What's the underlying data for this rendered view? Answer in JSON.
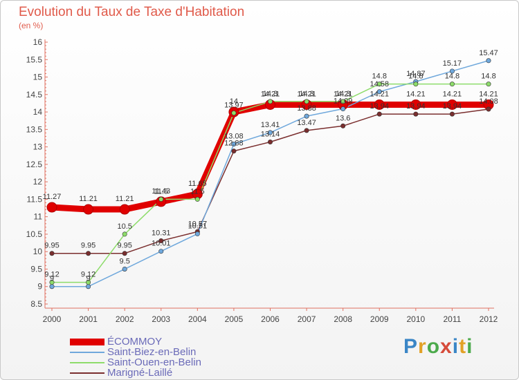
{
  "title": "Evolution du Taux de Taxe d'Habitation",
  "subtitle": "(en %)",
  "logo": "Proxiti",
  "logo_letters": [
    {
      "ch": "P",
      "color": "#3b86c6"
    },
    {
      "ch": "r",
      "color": "#e2a126"
    },
    {
      "ch": "o",
      "color": "#4caa4c"
    },
    {
      "ch": "x",
      "color": "#d64b3a"
    },
    {
      "ch": "i",
      "color": "#3b86c6"
    },
    {
      "ch": "t",
      "color": "#e2a126"
    },
    {
      "ch": "i",
      "color": "#4caa4c"
    }
  ],
  "chart_data": {
    "type": "line",
    "title": "Evolution du Taux de Taxe d'Habitation",
    "ylabel": "(en %)",
    "xlabel": "",
    "x": [
      "2000",
      "2001",
      "2002",
      "2003",
      "2004",
      "2005",
      "2006",
      "2007",
      "2008",
      "2009",
      "2010",
      "2011",
      "2012"
    ],
    "ylim": [
      8.5,
      16
    ],
    "yticks": [
      "8.5",
      "9",
      "9.5",
      "10",
      "10.5",
      "11",
      "11.5",
      "12",
      "12.5",
      "13",
      "13.5",
      "14",
      "14.5",
      "15",
      "15.5",
      "16"
    ],
    "grid": false,
    "legend": "bottom-left",
    "series": [
      {
        "name": "ÉCOMMOY",
        "color": "#e00000",
        "values": [
          11.27,
          11.21,
          11.21,
          11.43,
          11.65,
          14,
          14.21,
          14.21,
          14.21,
          14.21,
          14.21,
          14.21,
          14.21
        ],
        "labels": [
          "11.27",
          "11.21",
          "11.21",
          "11.43",
          "11.65",
          "14",
          "14.21",
          "14.21",
          "14.21",
          "14.21",
          "14.21",
          "14.21",
          "14.21"
        ]
      },
      {
        "name": "Saint-Biez-en-Belin",
        "color": "#6fa8dc",
        "values": [
          9,
          9,
          9.5,
          10.01,
          10.51,
          13.08,
          13.41,
          13.88,
          14.09,
          14.58,
          14.87,
          15.17,
          15.47
        ],
        "labels": [
          "9",
          "9",
          "9.5",
          "10.01",
          "10.51",
          "13.08",
          "13.41",
          "13.88",
          "14.09",
          "14.58",
          "14.87",
          "15.17",
          "15.47"
        ]
      },
      {
        "name": "Saint-Ouen-en-Belin",
        "color": "#8ddc6a",
        "values": [
          9.12,
          9.12,
          10.5,
          11.5,
          11.5,
          13.97,
          14.3,
          14.3,
          14.3,
          14.8,
          14.8,
          14.8,
          14.8
        ],
        "labels": [
          "9.12",
          "9.12",
          "10.5",
          "11.5",
          "11.5",
          "13.97",
          "14.3",
          "14.3",
          "14.3",
          "14.8",
          "14.8",
          "14.8",
          "14.8"
        ]
      },
      {
        "name": "Marigné-Laillé",
        "color": "#7a2e2e",
        "values": [
          9.95,
          9.95,
          9.95,
          10.31,
          10.57,
          12.88,
          13.14,
          13.47,
          13.6,
          13.94,
          13.94,
          13.94,
          14.08
        ],
        "labels": [
          "9.95",
          "9.95",
          "9.95",
          "10.31",
          "10.57",
          "12.88",
          "13.14",
          "13.47",
          "13.6",
          "13.94",
          "13.94",
          "13.94",
          "14.08"
        ]
      }
    ]
  }
}
